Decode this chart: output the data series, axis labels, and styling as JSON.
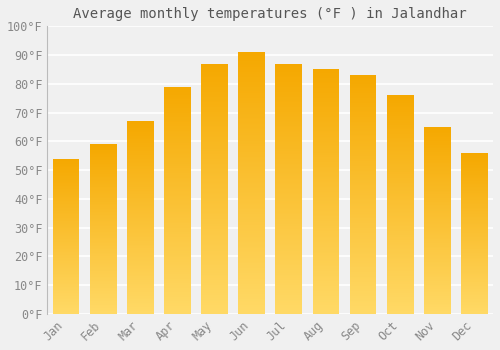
{
  "months": [
    "Jan",
    "Feb",
    "Mar",
    "Apr",
    "May",
    "Jun",
    "Jul",
    "Aug",
    "Sep",
    "Oct",
    "Nov",
    "Dec"
  ],
  "values": [
    54,
    59,
    67,
    79,
    87,
    91,
    87,
    85,
    83,
    76,
    65,
    56
  ],
  "bar_color_top": "#F5A800",
  "bar_color_bottom": "#FFD966",
  "title": "Average monthly temperatures (°F ) in Jalandhar",
  "ylim": [
    0,
    100
  ],
  "yticks": [
    0,
    10,
    20,
    30,
    40,
    50,
    60,
    70,
    80,
    90,
    100
  ],
  "ytick_labels": [
    "0°F",
    "10°F",
    "20°F",
    "30°F",
    "40°F",
    "50°F",
    "60°F",
    "70°F",
    "80°F",
    "90°F",
    "100°F"
  ],
  "background_color": "#f0f0f0",
  "grid_color": "#ffffff",
  "title_fontsize": 10,
  "tick_fontsize": 8.5,
  "bar_width": 0.72
}
